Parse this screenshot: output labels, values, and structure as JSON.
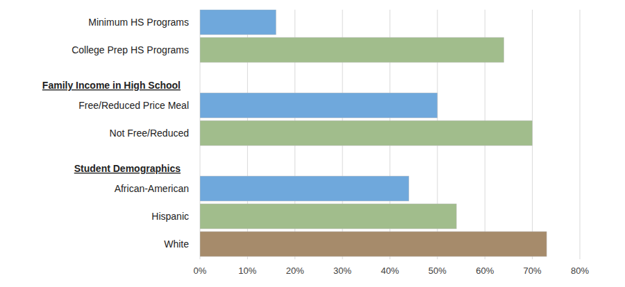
{
  "chart_data": {
    "type": "bar",
    "orientation": "horizontal",
    "categories": [
      "Minimum HS Programs",
      "College Prep HS Programs",
      "Family Income in High School",
      "Free/Reduced Price Meal",
      "Not Free/Reduced",
      "Student Demographics",
      "African-American",
      "Hispanic",
      "White"
    ],
    "values": [
      16,
      64,
      null,
      50,
      70,
      null,
      44,
      54,
      73
    ],
    "colors": [
      "#6fa8dc",
      "#a1bd8c",
      null,
      "#6fa8dc",
      "#a1bd8c",
      null,
      "#6fa8dc",
      "#a1bd8c",
      "#a68b6b"
    ],
    "xlim": [
      0,
      80
    ],
    "xticks": [
      {
        "value": 0,
        "label": "0%"
      },
      {
        "value": 10,
        "label": "10%"
      },
      {
        "value": 20,
        "label": "20%"
      },
      {
        "value": 30,
        "label": "30%"
      },
      {
        "value": 40,
        "label": "40%"
      },
      {
        "value": 50,
        "label": "50%"
      },
      {
        "value": 60,
        "label": "60%"
      },
      {
        "value": 70,
        "label": "70%"
      },
      {
        "value": 80,
        "label": "80%"
      }
    ],
    "grid": true
  }
}
